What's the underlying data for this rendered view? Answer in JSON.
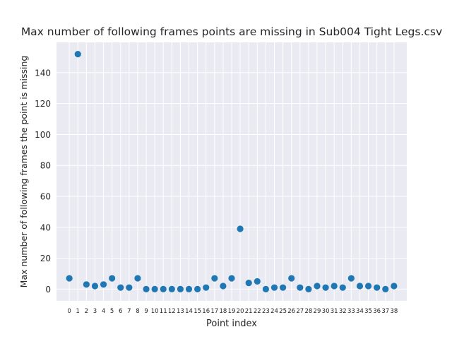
{
  "chart_data": {
    "type": "scatter",
    "title": "Max number of following frames points are missing in Sub004 Tight Legs.csv",
    "xlabel": "Point index",
    "ylabel": "Max number of following frames the point is missing",
    "xlim": [
      -1.5,
      39.5
    ],
    "ylim": [
      -7.6,
      159.6
    ],
    "grid": true,
    "x_ticks": [
      0,
      1,
      2,
      3,
      4,
      5,
      6,
      7,
      8,
      9,
      10,
      11,
      12,
      13,
      14,
      15,
      16,
      17,
      18,
      19,
      20,
      21,
      22,
      23,
      24,
      25,
      26,
      27,
      28,
      29,
      30,
      31,
      32,
      33,
      34,
      35,
      36,
      37,
      38
    ],
    "y_ticks": [
      0,
      20,
      40,
      60,
      80,
      100,
      120,
      140
    ],
    "x": [
      0,
      1,
      2,
      3,
      4,
      5,
      6,
      7,
      8,
      9,
      10,
      11,
      12,
      13,
      14,
      15,
      16,
      17,
      18,
      19,
      20,
      21,
      22,
      23,
      24,
      25,
      26,
      27,
      28,
      29,
      30,
      31,
      32,
      33,
      34,
      35,
      36,
      37,
      38
    ],
    "y": [
      7,
      152,
      3,
      2,
      3,
      7,
      1,
      1,
      7,
      0,
      0,
      0,
      0,
      0,
      0,
      0,
      1,
      7,
      2,
      7,
      39,
      4,
      5,
      0,
      1,
      1,
      7,
      1,
      0,
      2,
      1,
      2,
      1,
      7,
      2,
      2,
      1,
      0,
      2
    ],
    "colors": {
      "background": "#eaeaf2",
      "grid": "#ffffff",
      "marker": "#1f77b4",
      "text": "#262626"
    }
  }
}
